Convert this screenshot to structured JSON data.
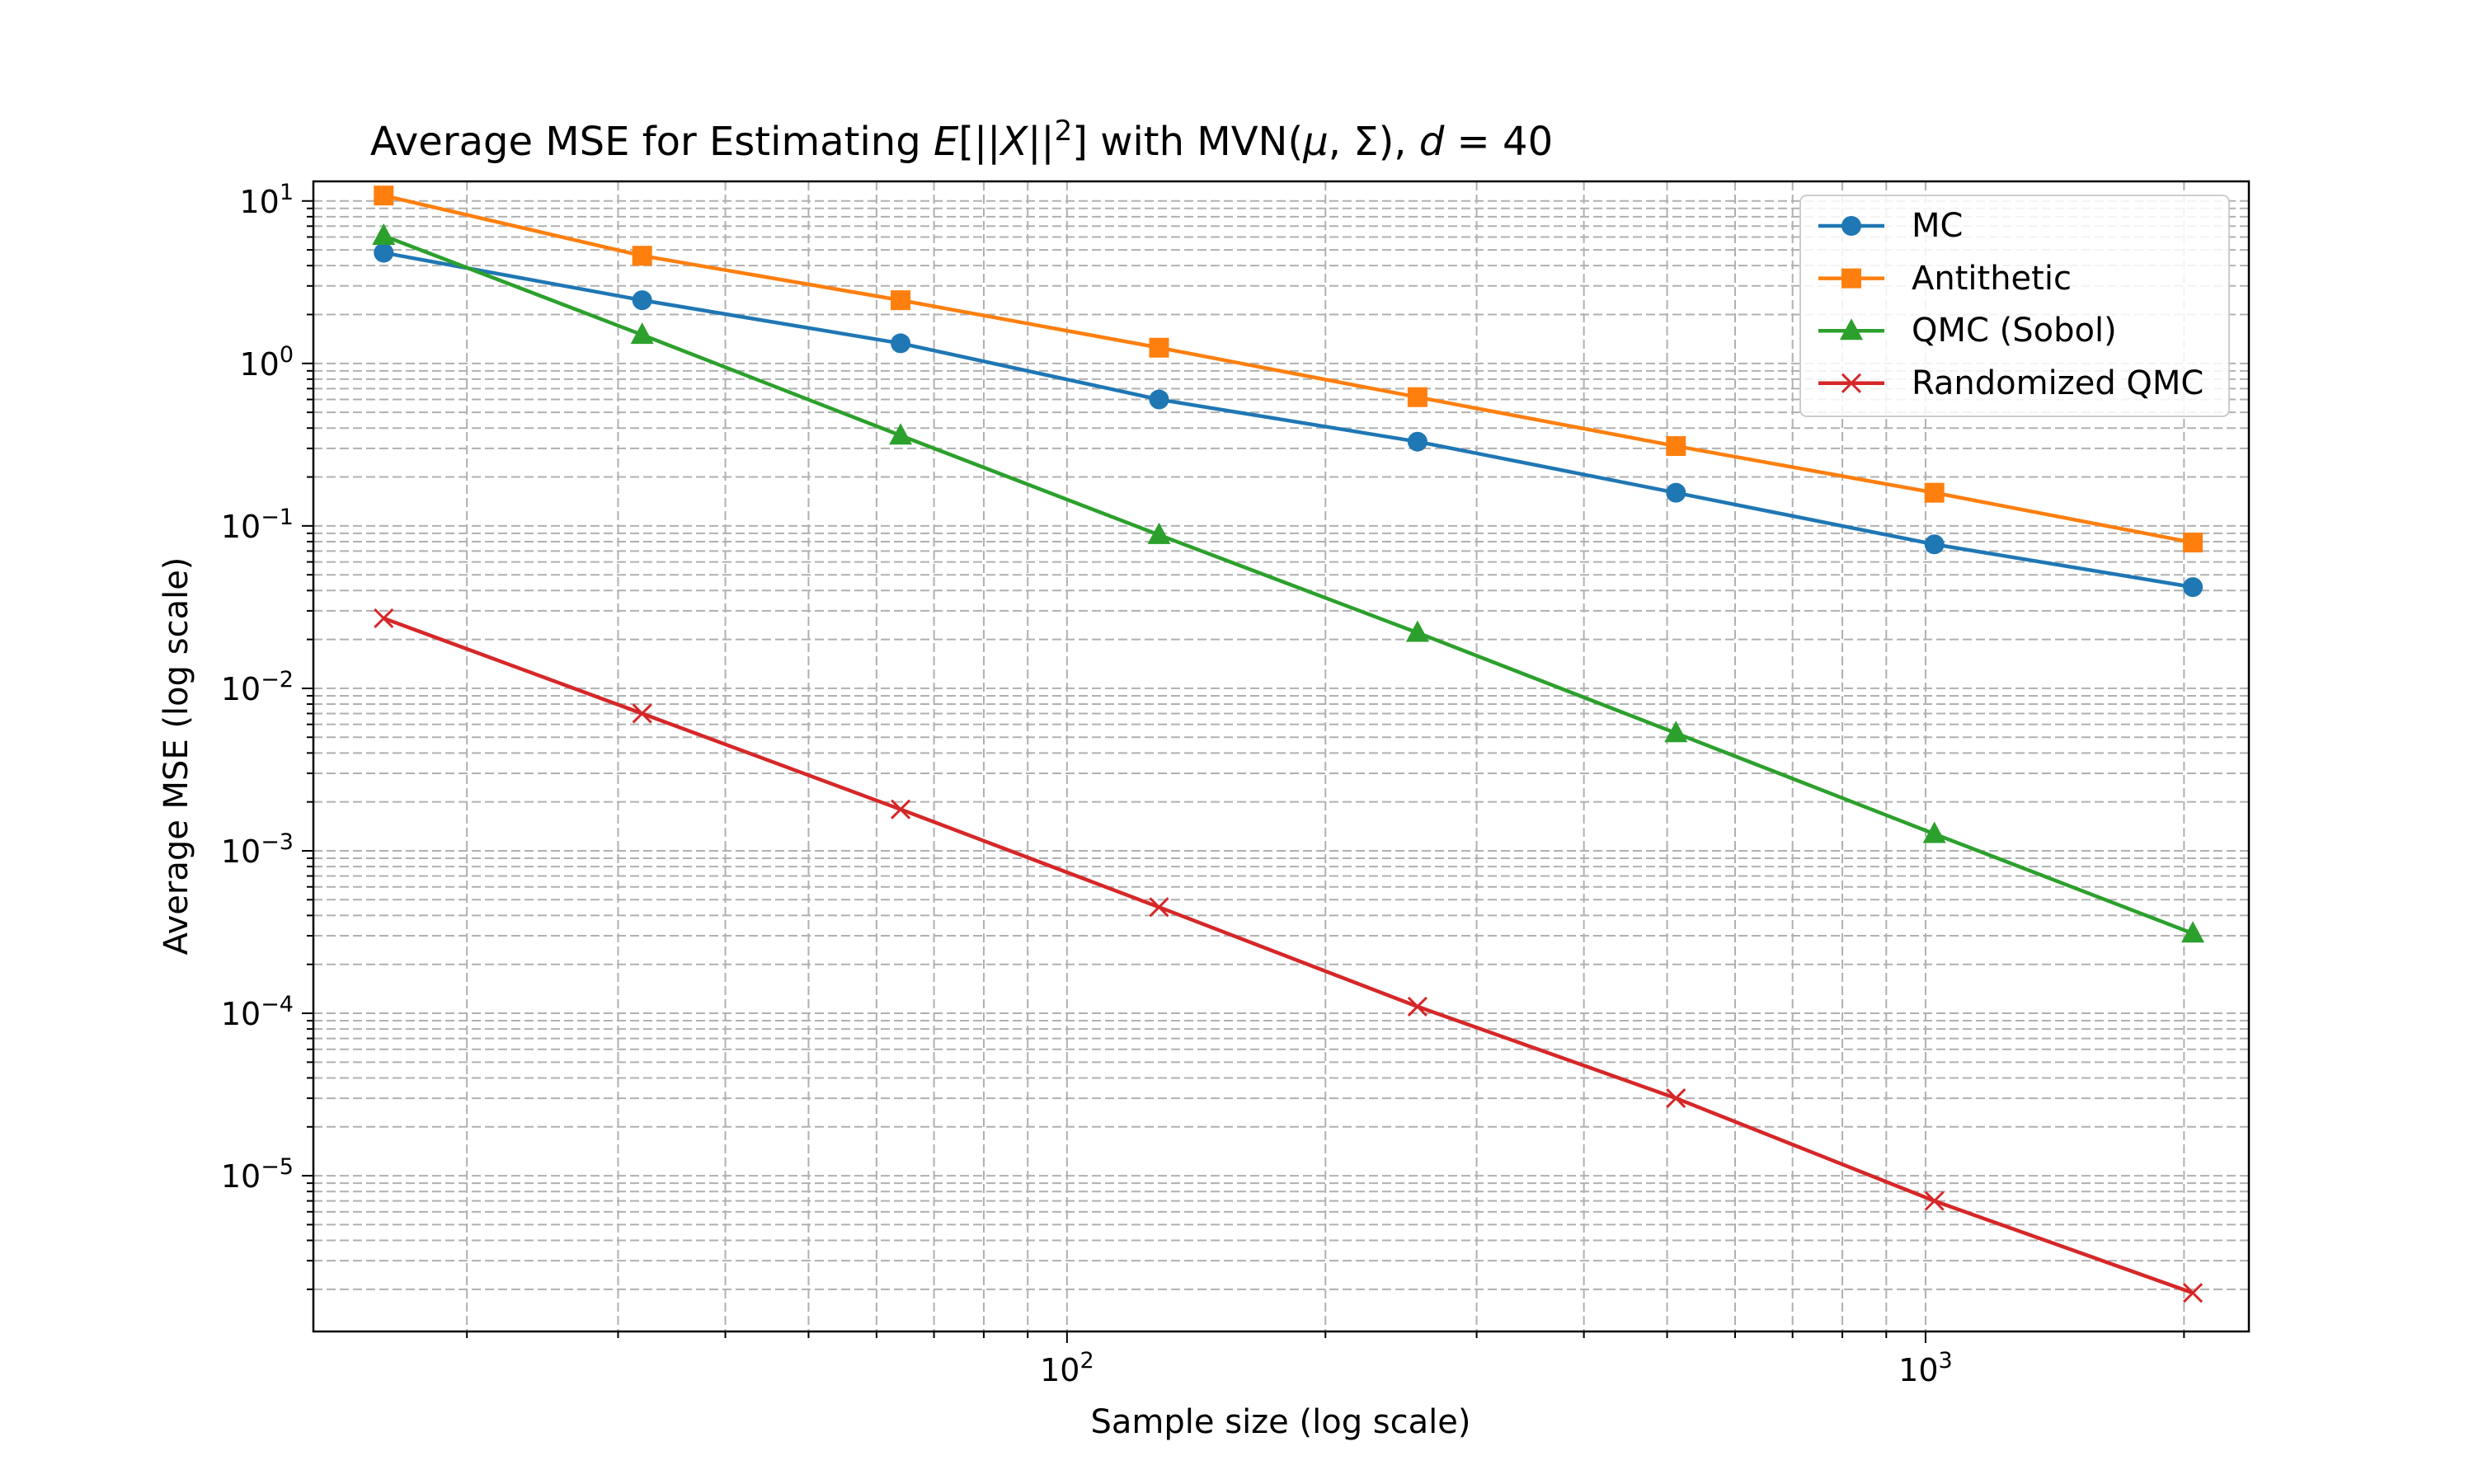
{
  "chart_data": {
    "type": "line",
    "title_parts": {
      "pre": "Average MSE for Estimating ",
      "E": "E",
      "bracket_open": "[||",
      "X": "X",
      "bracket_mid": "||",
      "sup": "2",
      "bracket_close": "]",
      "mid": " with MVN(",
      "mu": "μ",
      "comma_sigma": ", Σ), ",
      "d": "d",
      "eq": " = 40"
    },
    "xlabel": "Sample size (log scale)",
    "ylabel": "Average MSE (log scale)",
    "xscale": "log",
    "yscale": "log",
    "xlim": [
      13.25,
      2380
    ],
    "ylim": [
      1.1e-06,
      13.2
    ],
    "grid": true,
    "legend_position": "upper right",
    "x_tick_labels": [
      {
        "value": 100,
        "base": "10",
        "exp": "2"
      },
      {
        "value": 1000,
        "base": "10",
        "exp": "3"
      }
    ],
    "y_tick_labels": [
      {
        "value": 10,
        "base": "10",
        "exp": "1"
      },
      {
        "value": 1,
        "base": "10",
        "exp": "0"
      },
      {
        "value": 0.1,
        "base": "10",
        "exp": "−1"
      },
      {
        "value": 0.01,
        "base": "10",
        "exp": "−2"
      },
      {
        "value": 0.001,
        "base": "10",
        "exp": "−3"
      },
      {
        "value": 0.0001,
        "base": "10",
        "exp": "−4"
      },
      {
        "value": 1e-05,
        "base": "10",
        "exp": "−5"
      }
    ],
    "x": [
      16,
      32,
      64,
      128,
      256,
      512,
      1024,
      2048
    ],
    "series": [
      {
        "name": "MC",
        "color": "#1f77b4",
        "marker": "circle",
        "values": [
          4.8,
          2.45,
          1.33,
          0.6,
          0.33,
          0.16,
          0.077,
          0.042
        ]
      },
      {
        "name": "Antithetic",
        "color": "#ff7f0e",
        "marker": "square",
        "values": [
          10.8,
          4.6,
          2.45,
          1.25,
          0.62,
          0.31,
          0.16,
          0.079
        ]
      },
      {
        "name": "QMC (Sobol)",
        "color": "#2ca02c",
        "marker": "triangle",
        "values": [
          6.1,
          1.5,
          0.36,
          0.088,
          0.022,
          0.0053,
          0.00127,
          0.00031
        ]
      },
      {
        "name": "Randomized QMC",
        "color": "#d62728",
        "marker": "x",
        "values": [
          0.027,
          0.007,
          0.0018,
          0.00045,
          0.00011,
          3e-05,
          7e-06,
          1.9e-06
        ]
      }
    ]
  }
}
